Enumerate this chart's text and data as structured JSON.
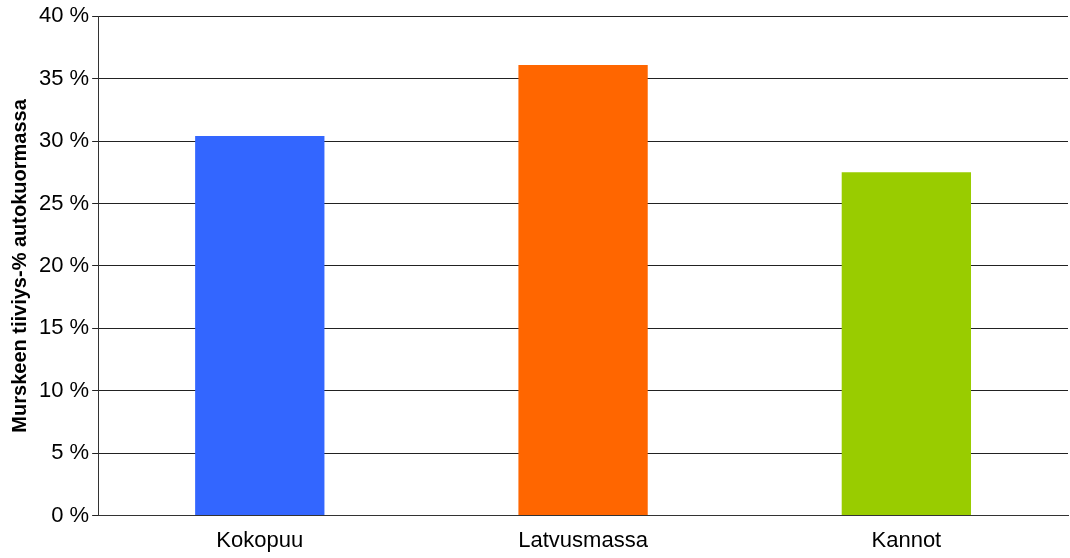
{
  "chart_data": {
    "type": "bar",
    "ylabel": "Murskeen tiiviys-% autokuormassa",
    "categories": [
      "Kokopuu",
      "Latvusmassa",
      "Kannot"
    ],
    "values": [
      30.4,
      36.1,
      27.5
    ],
    "colors": [
      "#3366ff",
      "#ff6600",
      "#99cc00"
    ],
    "ylim": [
      0,
      40
    ],
    "yticks": [
      {
        "value": 0,
        "label": "0 %"
      },
      {
        "value": 5,
        "label": "5 %"
      },
      {
        "value": 10,
        "label": "10 %"
      },
      {
        "value": 15,
        "label": "15 %"
      },
      {
        "value": 20,
        "label": "20 %"
      },
      {
        "value": 25,
        "label": "25 %"
      },
      {
        "value": 30,
        "label": "30 %"
      },
      {
        "value": 35,
        "label": "35 %"
      },
      {
        "value": 40,
        "label": "40 %"
      }
    ],
    "grid": "y",
    "legend": false
  }
}
